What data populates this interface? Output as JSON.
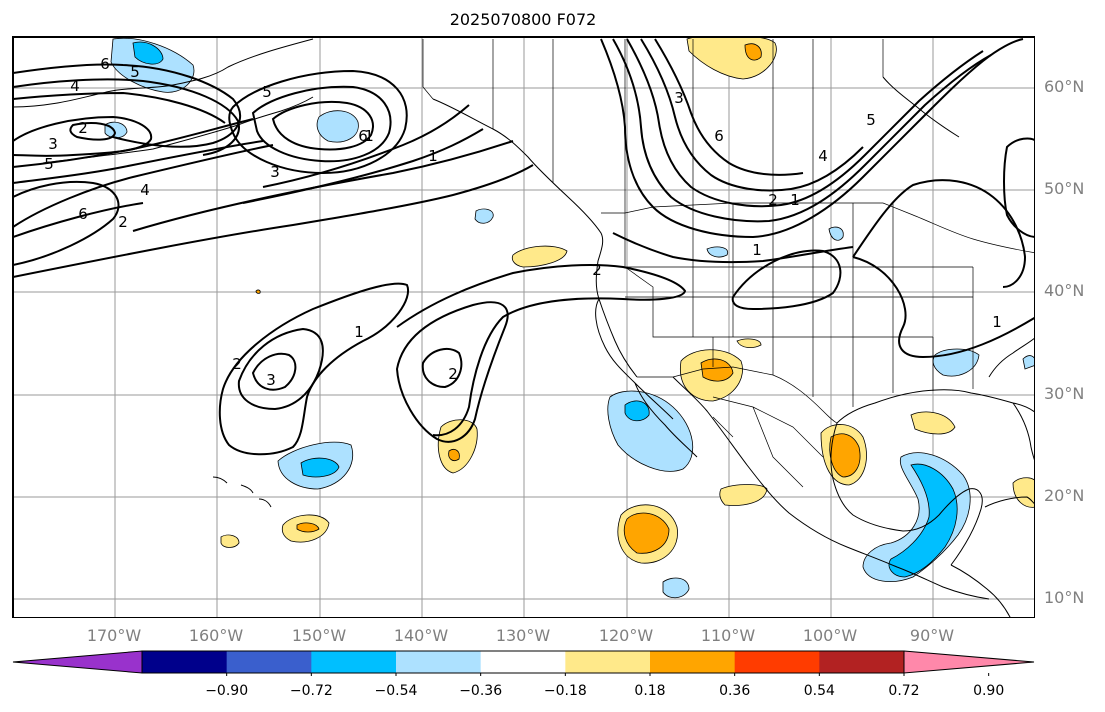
{
  "title": "2025070800 F072",
  "map": {
    "projection": "PlateCarree",
    "lon_range": [
      -180,
      -80
    ],
    "lat_range": [
      8,
      65
    ],
    "grid": true,
    "lat_labels": [
      "60°N",
      "50°N",
      "40°N",
      "30°N",
      "20°N",
      "10°N"
    ],
    "lon_labels": [
      "170°W",
      "160°W",
      "150°W",
      "140°W",
      "130°W",
      "120°W",
      "110°W",
      "100°W",
      "90°W"
    ],
    "contour_labels": [
      "6",
      "5",
      "4",
      "3",
      "2",
      "5",
      "6",
      "3",
      "4",
      "6",
      "2",
      "1",
      "5",
      "2",
      "3",
      "6",
      "1",
      "2",
      "1",
      "1",
      "4",
      "5",
      "1",
      "2",
      "3",
      "2",
      "1"
    ]
  },
  "colorbar": {
    "ticks": [
      "−0.90",
      "−0.72",
      "−0.54",
      "−0.36",
      "−0.18",
      "0.18",
      "0.36",
      "0.54",
      "0.72",
      "0.90"
    ],
    "colors": [
      "#9932CC",
      "#00008B",
      "#3A5FCD",
      "#00BFFF",
      "#ADE1FF",
      "#FFFFFF",
      "#FFE98A",
      "#FFA500",
      "#FF3C00",
      "#B22222",
      "#FF88AA"
    ],
    "extend": "both"
  }
}
